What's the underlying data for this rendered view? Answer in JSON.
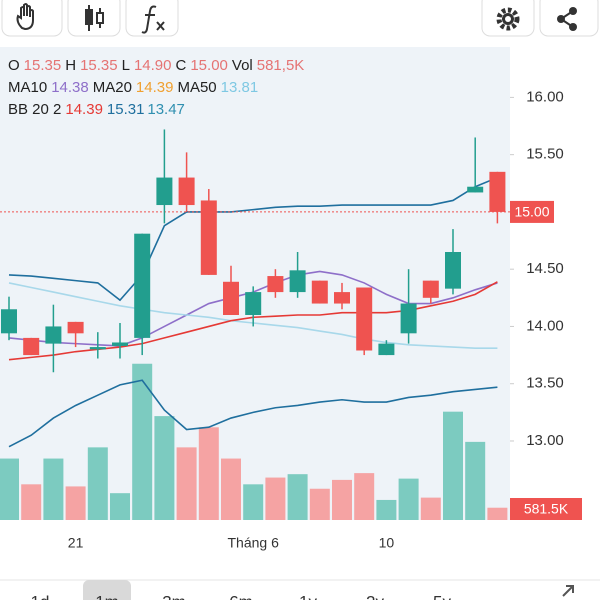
{
  "ohlc_header": {
    "labels": [
      "O",
      "H",
      "L",
      "C",
      "Vol"
    ],
    "values": [
      "15.35",
      "15.35",
      "14.90",
      "15.00",
      "581,5K"
    ]
  },
  "legend": {
    "ma": [
      {
        "name": "MA10",
        "value": "14.38",
        "color": "#8e6fc9"
      },
      {
        "name": "MA20",
        "value": "14.39",
        "color": "#f0a030"
      },
      {
        "name": "MA50",
        "value": "13.81",
        "color": "#7ec8e3"
      }
    ],
    "bb": {
      "name": "BB 20 2",
      "values": [
        "14.39",
        "15.31",
        "13.47"
      ],
      "colors": [
        "#e53935",
        "#1f6f9e",
        "#2f8fb0"
      ]
    }
  },
  "range_tabs": {
    "options": [
      "1d",
      "1m",
      "3m",
      "6m",
      "1y",
      "2y",
      "5y"
    ],
    "selected": 1
  },
  "chart_data": {
    "type": "candlestick",
    "categories": [
      null,
      null,
      null,
      "21",
      null,
      null,
      null,
      null,
      null,
      null,
      null,
      "Tháng 6",
      null,
      null,
      null,
      null,
      null,
      "10",
      null,
      null,
      null,
      null,
      null
    ],
    "open": [
      13.94,
      13.9,
      13.85,
      14.04,
      13.8,
      13.83,
      13.9,
      15.06,
      15.3,
      15.1,
      14.39,
      14.1,
      14.44,
      14.3,
      14.4,
      14.3,
      14.34,
      13.75,
      13.94,
      14.4,
      14.33,
      15.17,
      15.35
    ],
    "high": [
      14.26,
      13.9,
      14.19,
      14.04,
      13.95,
      14.03,
      14.81,
      15.72,
      15.52,
      15.2,
      14.53,
      14.35,
      14.5,
      14.65,
      14.4,
      14.38,
      14.34,
      13.88,
      14.5,
      14.4,
      14.85,
      15.65,
      15.35
    ],
    "low": [
      13.88,
      13.75,
      13.6,
      13.82,
      13.72,
      13.72,
      13.75,
      14.9,
      15.0,
      14.45,
      14.1,
      14.0,
      14.25,
      14.25,
      14.2,
      14.15,
      13.75,
      13.75,
      13.85,
      14.2,
      14.28,
      15.17,
      14.9
    ],
    "close": [
      14.15,
      13.75,
      14.0,
      13.94,
      13.82,
      13.86,
      14.81,
      15.3,
      15.06,
      14.45,
      14.1,
      14.3,
      14.3,
      14.49,
      14.2,
      14.2,
      13.79,
      13.85,
      14.2,
      14.25,
      14.65,
      15.22,
      15.0
    ],
    "up_color": "#229e8e",
    "down_color": "#ef5350",
    "volume": {
      "values": [
        2910,
        1690,
        2910,
        1590,
        3440,
        1270,
        7400,
        4920,
        3440,
        4390,
        2910,
        1690,
        2010,
        2170,
        1480,
        1900,
        2220,
        950,
        1960,
        1060,
        5130,
        3700,
        581.5
      ],
      "value_labels": [
        null,
        null,
        null,
        null,
        null,
        null,
        null,
        null,
        null,
        null,
        null,
        null,
        null,
        null,
        null,
        null,
        null,
        null,
        null,
        null,
        null,
        null,
        "581.5K"
      ],
      "ylim": [
        0,
        22400
      ],
      "up_color": "#7ccbc0",
      "down_color": "#f5a3a3"
    },
    "lines": [
      {
        "color": "#8e6fc9",
        "values": [
          13.9,
          13.88,
          13.86,
          13.85,
          13.84,
          13.83,
          13.9,
          14.0,
          14.1,
          14.2,
          14.25,
          14.3,
          14.38,
          14.45,
          14.48,
          14.45,
          14.38,
          14.28,
          14.2,
          14.2,
          14.25,
          14.32,
          14.38
        ]
      },
      {
        "color": "#a8d8ea",
        "values": [
          14.38,
          14.34,
          14.3,
          14.26,
          14.22,
          14.18,
          14.15,
          14.12,
          14.1,
          14.08,
          14.05,
          14.03,
          14.01,
          13.99,
          13.96,
          13.93,
          13.89,
          13.86,
          13.84,
          13.83,
          13.82,
          13.81,
          13.81
        ]
      },
      {
        "color": "#e53935",
        "values": [
          13.71,
          13.73,
          13.75,
          13.78,
          13.8,
          13.82,
          13.85,
          13.9,
          13.95,
          14.0,
          14.05,
          14.08,
          14.09,
          14.1,
          14.1,
          14.12,
          14.12,
          14.12,
          14.14,
          14.18,
          14.22,
          14.28,
          14.39
        ]
      },
      {
        "color": "#1f6f9e",
        "values": [
          14.45,
          14.44,
          14.42,
          14.4,
          14.38,
          14.23,
          14.45,
          14.88,
          15.0,
          15.0,
          15.0,
          15.02,
          15.04,
          15.05,
          15.05,
          15.06,
          15.06,
          15.06,
          15.06,
          15.06,
          15.1,
          15.22,
          15.3
        ]
      },
      {
        "color": "#1f6f9e",
        "values": [
          12.95,
          13.05,
          13.2,
          13.31,
          13.4,
          13.49,
          13.53,
          13.27,
          13.1,
          13.12,
          13.2,
          13.25,
          13.29,
          13.31,
          13.34,
          13.36,
          13.34,
          13.34,
          13.38,
          13.4,
          13.43,
          13.45,
          13.47
        ]
      }
    ],
    "ylim": [
      12.31,
      16.44
    ],
    "yticks": [
      {
        "value": 16,
        "label": "16.00"
      },
      {
        "value": 15.5,
        "label": "15.50"
      },
      {
        "value": 14.5,
        "label": "14.50"
      },
      {
        "value": 14,
        "label": "14.00"
      },
      {
        "value": 13.5,
        "label": "13.50"
      },
      {
        "value": 13,
        "label": "13.00"
      }
    ],
    "last_price": {
      "value": 15,
      "label": "15.00"
    }
  }
}
